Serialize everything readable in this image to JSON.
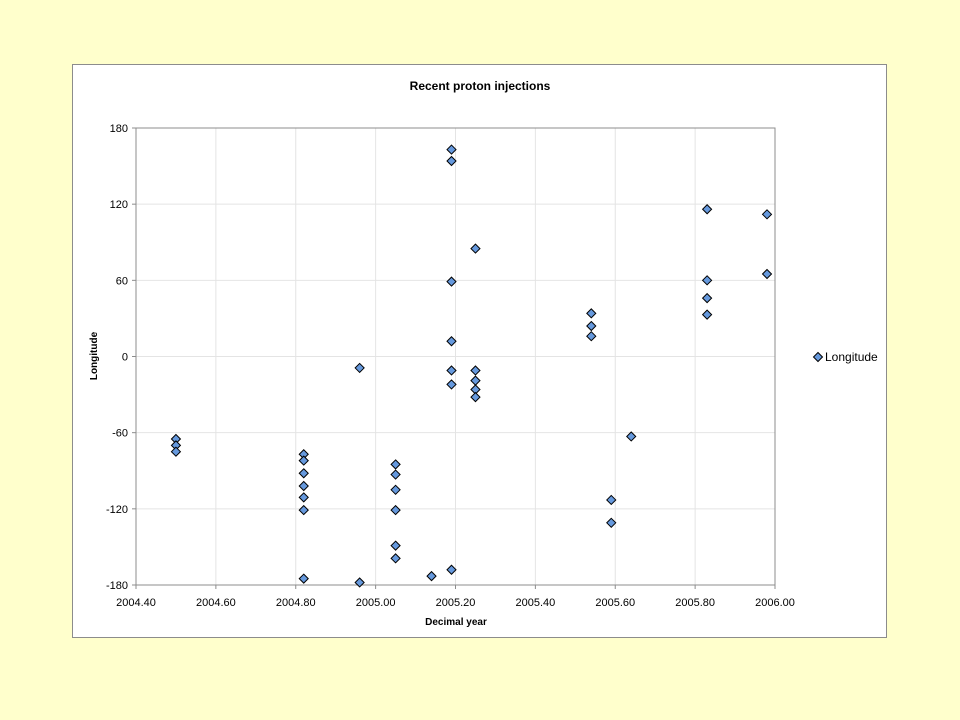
{
  "chart_data": {
    "type": "scatter",
    "title": "Recent proton injections",
    "xlabel": "Decimal year",
    "ylabel": "Longitude",
    "xlim": [
      2004.4,
      2006.0
    ],
    "ylim": [
      -180,
      180
    ],
    "xticks": [
      "2004.40",
      "2004.60",
      "2004.80",
      "2005.00",
      "2005.20",
      "2005.40",
      "2005.60",
      "2005.80",
      "2006.00"
    ],
    "yticks": [
      "180",
      "120",
      "60",
      "0",
      "-60",
      "-120",
      "-180"
    ],
    "grid": true,
    "legend_position": "right",
    "marker": "diamond",
    "marker_color": "#6699dd",
    "series": [
      {
        "name": "Longitude",
        "points": [
          {
            "x": 2004.5,
            "y": -65
          },
          {
            "x": 2004.5,
            "y": -70
          },
          {
            "x": 2004.5,
            "y": -75
          },
          {
            "x": 2004.82,
            "y": -77
          },
          {
            "x": 2004.82,
            "y": -82
          },
          {
            "x": 2004.82,
            "y": -92
          },
          {
            "x": 2004.82,
            "y": -102
          },
          {
            "x": 2004.82,
            "y": -111
          },
          {
            "x": 2004.82,
            "y": -121
          },
          {
            "x": 2004.82,
            "y": -175
          },
          {
            "x": 2004.96,
            "y": -9
          },
          {
            "x": 2004.96,
            "y": -178
          },
          {
            "x": 2005.05,
            "y": -85
          },
          {
            "x": 2005.05,
            "y": -93
          },
          {
            "x": 2005.05,
            "y": -105
          },
          {
            "x": 2005.05,
            "y": -121
          },
          {
            "x": 2005.05,
            "y": -149
          },
          {
            "x": 2005.05,
            "y": -159
          },
          {
            "x": 2005.14,
            "y": -173
          },
          {
            "x": 2005.19,
            "y": 163
          },
          {
            "x": 2005.19,
            "y": 154
          },
          {
            "x": 2005.19,
            "y": 59
          },
          {
            "x": 2005.19,
            "y": 12
          },
          {
            "x": 2005.19,
            "y": -11
          },
          {
            "x": 2005.19,
            "y": -22
          },
          {
            "x": 2005.19,
            "y": -168
          },
          {
            "x": 2005.25,
            "y": 85
          },
          {
            "x": 2005.25,
            "y": -11
          },
          {
            "x": 2005.25,
            "y": -19
          },
          {
            "x": 2005.25,
            "y": -26
          },
          {
            "x": 2005.25,
            "y": -32
          },
          {
            "x": 2005.54,
            "y": 34
          },
          {
            "x": 2005.54,
            "y": 24
          },
          {
            "x": 2005.54,
            "y": 16
          },
          {
            "x": 2005.59,
            "y": -113
          },
          {
            "x": 2005.59,
            "y": -131
          },
          {
            "x": 2005.64,
            "y": -63
          },
          {
            "x": 2005.83,
            "y": 116
          },
          {
            "x": 2005.83,
            "y": 60
          },
          {
            "x": 2005.83,
            "y": 46
          },
          {
            "x": 2005.83,
            "y": 33
          },
          {
            "x": 2005.98,
            "y": 112
          },
          {
            "x": 2005.98,
            "y": 65
          }
        ]
      }
    ]
  }
}
